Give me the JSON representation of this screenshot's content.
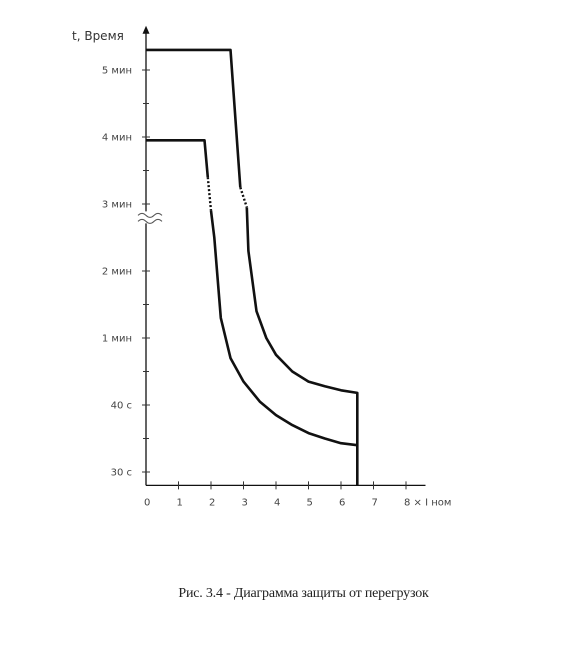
{
  "chart_data": {
    "type": "line",
    "title": "",
    "ylabel": "t, Время",
    "xlabel": "",
    "x_ticks": [
      {
        "value": 0,
        "label": "0"
      },
      {
        "value": 1,
        "label": "1"
      },
      {
        "value": 2,
        "label": "2"
      },
      {
        "value": 3,
        "label": "3"
      },
      {
        "value": 4,
        "label": "4"
      },
      {
        "value": 5,
        "label": "5"
      },
      {
        "value": 6,
        "label": "6"
      },
      {
        "value": 7,
        "label": "7"
      },
      {
        "value": 8,
        "label": "8 × I ном"
      }
    ],
    "xlim": [
      0,
      8.6
    ],
    "y_ticks": [
      {
        "value": 0,
        "label": "30 с"
      },
      {
        "value": 1,
        "label": "40 с"
      },
      {
        "value": 2,
        "label": "1 мин"
      },
      {
        "value": 3,
        "label": "2 мин"
      },
      {
        "value": 4,
        "label": "3 мин"
      },
      {
        "value": 5,
        "label": "4 мин"
      },
      {
        "value": 6,
        "label": "5 мин"
      }
    ],
    "ylim": [
      -0.2,
      6.6
    ],
    "axis_break_y": 3.8,
    "series": [
      {
        "segments": [
          {
            "style": "solid",
            "points": [
              [
                0,
                6.3
              ],
              [
                2.6,
                6.3
              ],
              [
                2.9,
                4.25
              ]
            ]
          },
          {
            "style": "dotted",
            "points": [
              [
                2.9,
                4.25
              ],
              [
                3.1,
                3.95
              ]
            ]
          },
          {
            "style": "solid",
            "points": [
              [
                3.1,
                3.95
              ],
              [
                3.15,
                3.3
              ],
              [
                3.4,
                2.4
              ],
              [
                3.7,
                2.0
              ],
              [
                4.0,
                1.75
              ],
              [
                4.5,
                1.5
              ],
              [
                5.0,
                1.35
              ],
              [
                5.5,
                1.28
              ],
              [
                6.0,
                1.22
              ],
              [
                6.5,
                1.18
              ],
              [
                6.5,
                -0.2
              ]
            ]
          }
        ]
      },
      {
        "segments": [
          {
            "style": "solid",
            "points": [
              [
                0,
                4.95
              ],
              [
                1.8,
                4.95
              ],
              [
                1.9,
                4.4
              ]
            ]
          },
          {
            "style": "dotted",
            "points": [
              [
                1.9,
                4.4
              ],
              [
                2.0,
                3.9
              ]
            ]
          },
          {
            "style": "solid",
            "points": [
              [
                2.0,
                3.9
              ],
              [
                2.1,
                3.5
              ],
              [
                2.3,
                2.3
              ],
              [
                2.6,
                1.7
              ],
              [
                3.0,
                1.35
              ],
              [
                3.5,
                1.05
              ],
              [
                4.0,
                0.85
              ],
              [
                4.5,
                0.7
              ],
              [
                5.0,
                0.58
              ],
              [
                5.5,
                0.5
              ],
              [
                6.0,
                0.43
              ],
              [
                6.5,
                0.4
              ]
            ]
          }
        ]
      }
    ],
    "grid": false,
    "legend": "none"
  },
  "caption": "Рис. 3.4 - Диаграмма защиты от перегрузок"
}
